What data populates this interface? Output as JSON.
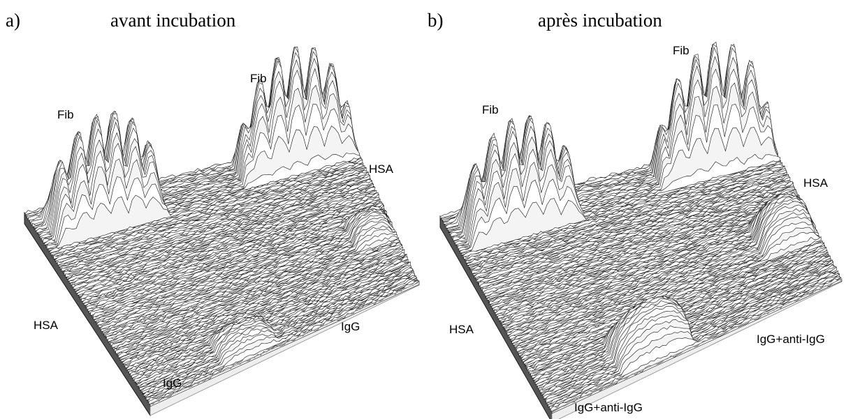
{
  "panels": [
    {
      "letter": "a)",
      "title": "avant incubation",
      "labels": [
        "Fib",
        "Fib",
        "HSA",
        "HSA",
        "IgG",
        "IgG"
      ]
    },
    {
      "letter": "b)",
      "title": "après incubation",
      "labels": [
        "Fib",
        "Fib",
        "HSA",
        "HSA",
        "IgG+anti-IgG",
        "IgG+anti-IgG"
      ]
    }
  ]
}
